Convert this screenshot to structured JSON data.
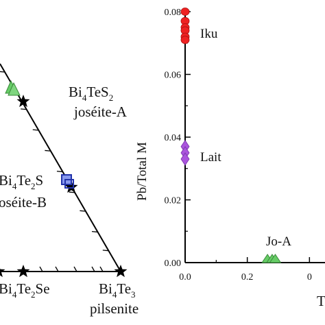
{
  "chart_data": [
    {
      "type": "ternary-diagram",
      "title": "",
      "minerals": [
        {
          "formula_base": "Bi",
          "formula_sub1": "4",
          "formula_mid": "TeS",
          "formula_sub2": "2",
          "name": "joséite-A"
        },
        {
          "formula_base": "Bi",
          "formula_sub1": "4",
          "formula_mid": "Te",
          "formula_sub2": "2",
          "formula_tail": "S",
          "name": "oséite-B"
        },
        {
          "formula_base": "Bi",
          "formula_sub1": "4",
          "formula_mid": "Te",
          "formula_sub2": "2",
          "formula_tail": "Se",
          "name": ""
        },
        {
          "formula_base": "Bi",
          "formula_sub1": "4",
          "formula_mid": "Te",
          "formula_sub2": "3",
          "name": "pilsenite"
        }
      ],
      "symbol_colors": {
        "star": "#000000",
        "green_triangle": "#66cc66",
        "blue_square": "#3344bb"
      }
    },
    {
      "type": "scatter",
      "title": "",
      "ylabel": "Pb/Total M",
      "xlabel": "T",
      "ylim": [
        0,
        0.08
      ],
      "xlim": [
        0,
        0.45
      ],
      "yticks": [
        "0.00",
        "0.02",
        "0.04",
        "0.06",
        "0.08"
      ],
      "xticks": [
        "0.0",
        "0.2",
        "0"
      ],
      "series": [
        {
          "name": "Iku",
          "color": "#ee2222",
          "marker": "circle",
          "points": [
            [
              0,
              0.08
            ],
            [
              0,
              0.077
            ],
            [
              0,
              0.075
            ],
            [
              0,
              0.074
            ],
            [
              0,
              0.072
            ],
            [
              0,
              0.071
            ]
          ]
        },
        {
          "name": "Lait",
          "color": "#aa55dd",
          "marker": "diamond",
          "points": [
            [
              0,
              0.037
            ],
            [
              0,
              0.035
            ],
            [
              0,
              0.033
            ]
          ]
        },
        {
          "name": "Jo-A",
          "color": "#66cc66",
          "marker": "triangle",
          "points": [
            [
              0.265,
              0
            ],
            [
              0.28,
              0
            ],
            [
              0.29,
              0
            ]
          ]
        }
      ]
    }
  ]
}
